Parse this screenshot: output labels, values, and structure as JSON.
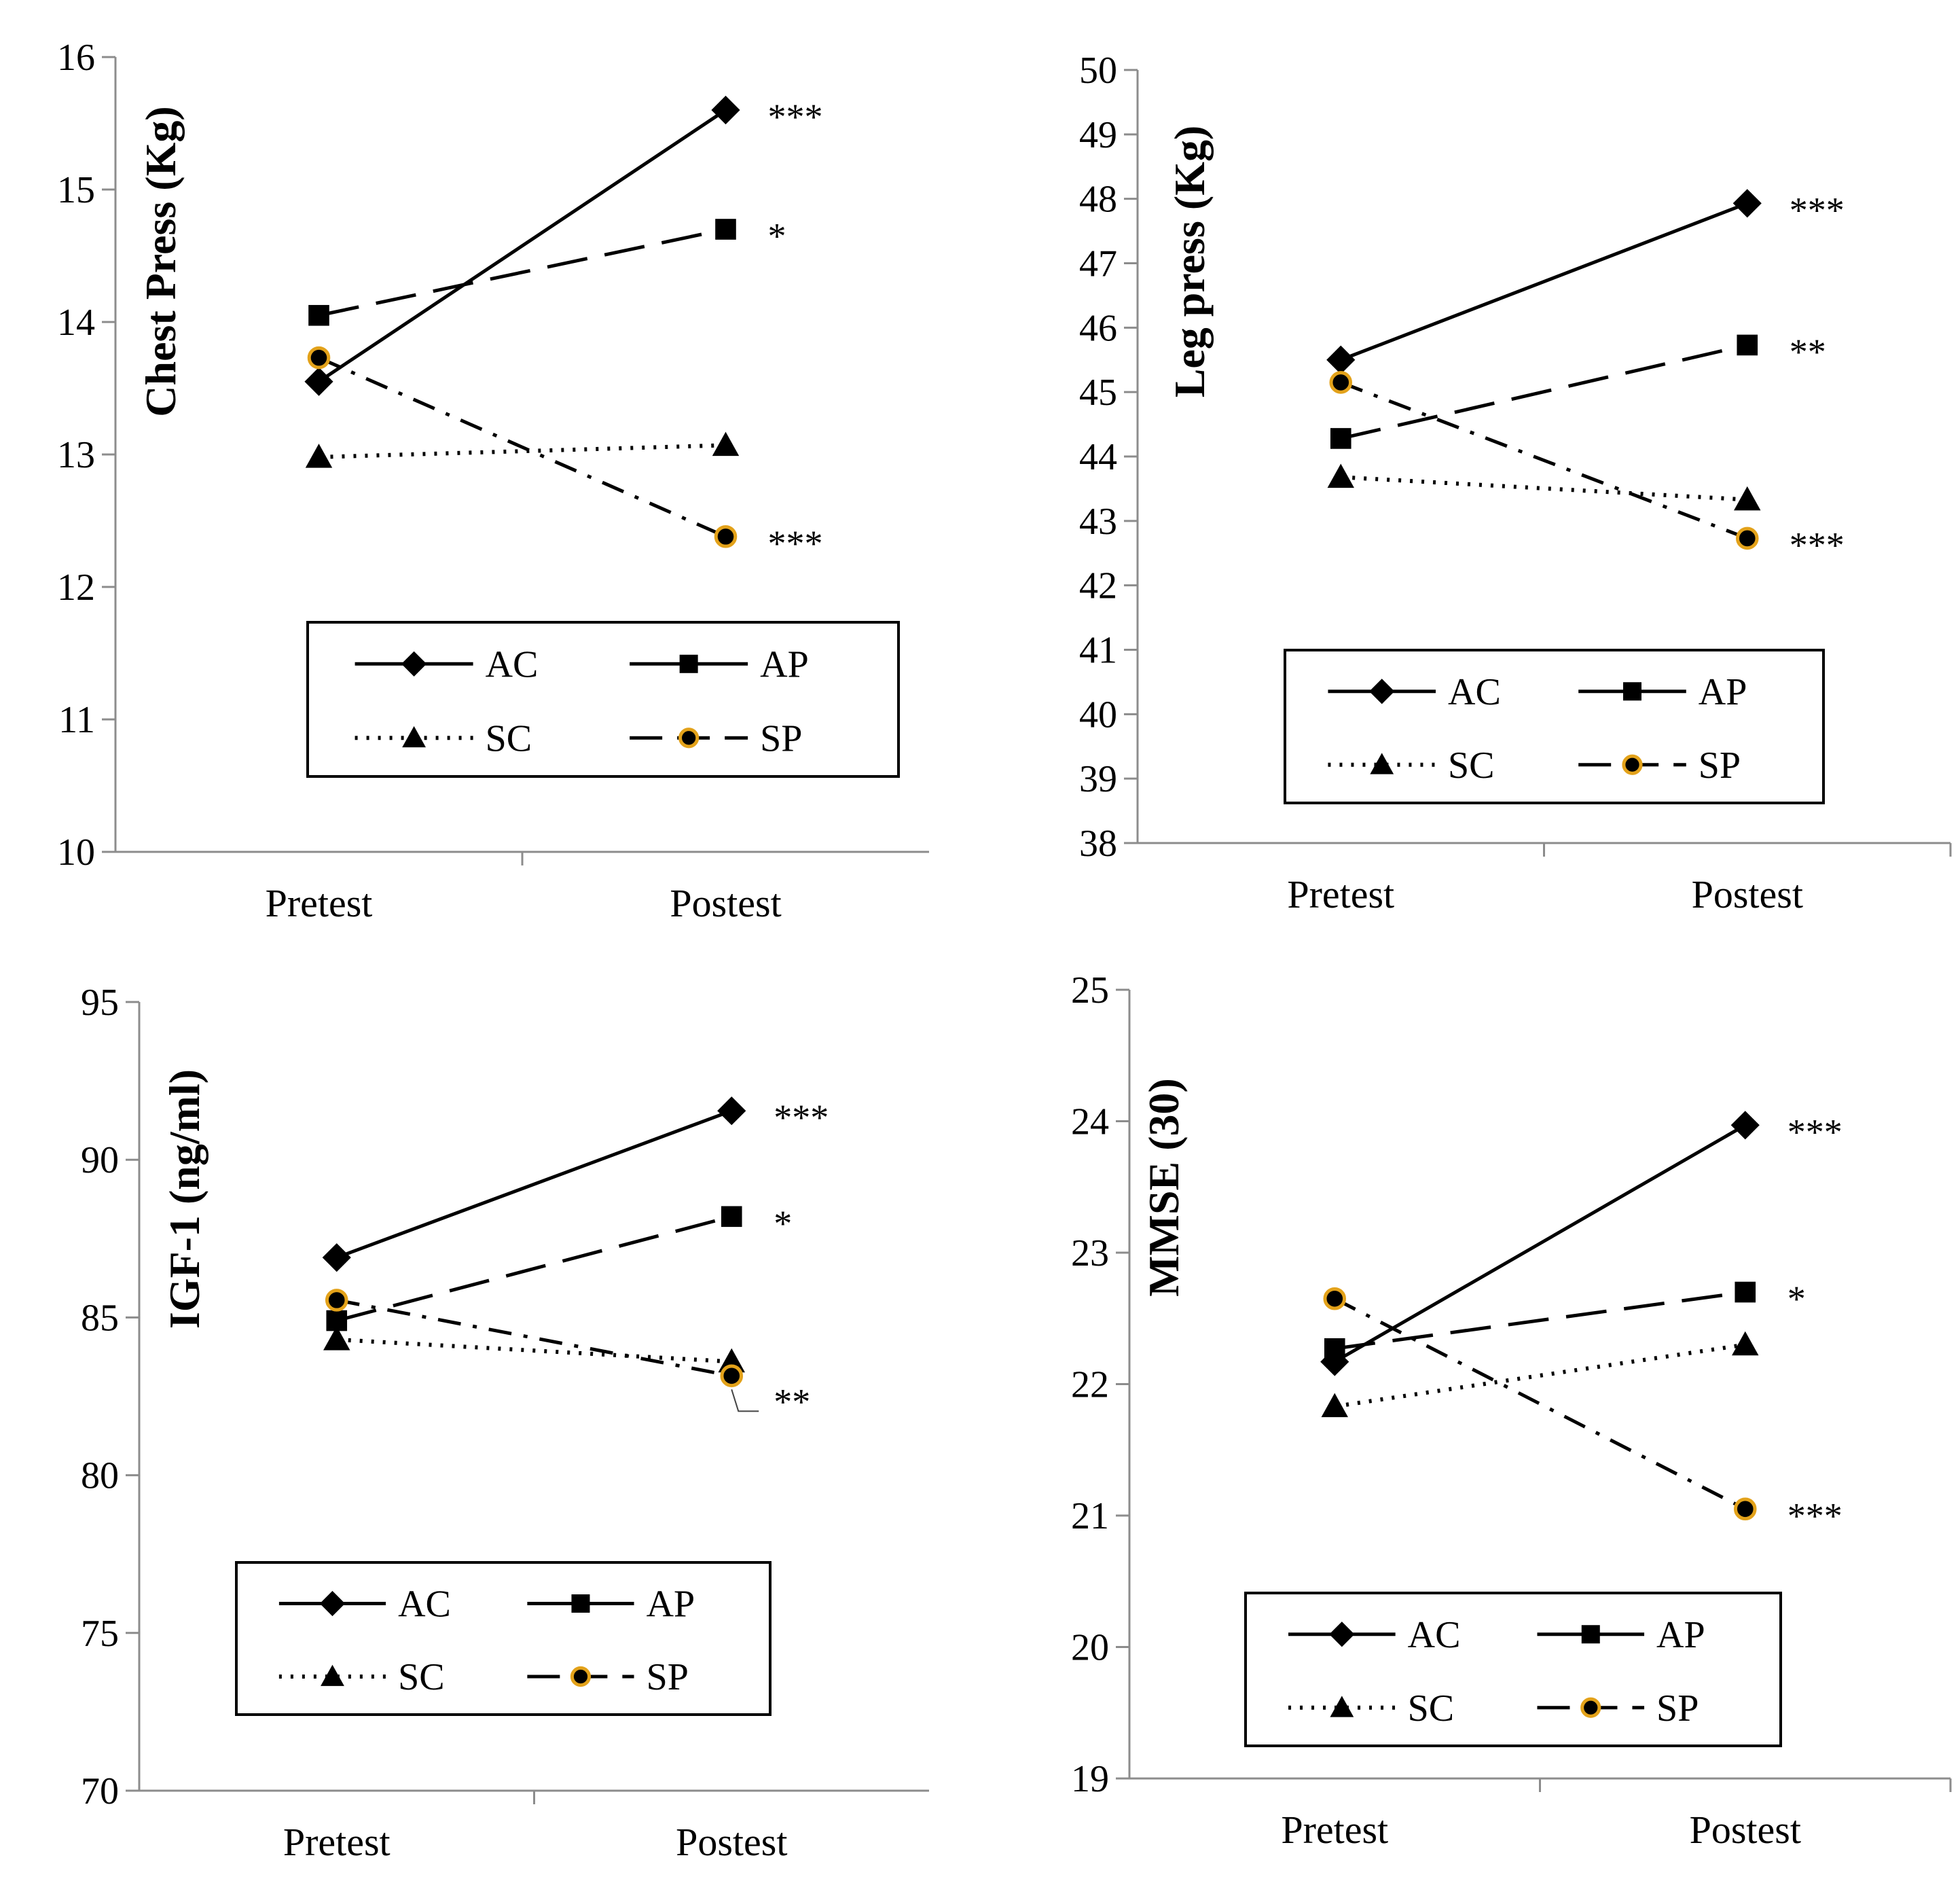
{
  "categories": [
    "Pretest",
    "Postest"
  ],
  "colors": {
    "line": "#000000",
    "sp_marker_fill": "#000000",
    "sp_marker_stroke": "#E3A21A",
    "background": "#ffffff"
  },
  "legend_items": [
    {
      "key": "AC",
      "label": "AC",
      "marker": "diamond",
      "dash": "solid"
    },
    {
      "key": "AP",
      "label": "AP",
      "marker": "square",
      "dash": "solid"
    },
    {
      "key": "SC",
      "label": "SC",
      "marker": "triangle",
      "dash": "dotted"
    },
    {
      "key": "SP",
      "label": "SP",
      "marker": "circle-orange",
      "dash": "dashed"
    }
  ],
  "chart_data": [
    {
      "type": "line",
      "ylabel": "Chest Press (Kg)",
      "ylim": [
        10,
        16
      ],
      "yticks": [
        10,
        11,
        12,
        13,
        14,
        15,
        16
      ],
      "categories": [
        "Pretest",
        "Postest"
      ],
      "series": [
        {
          "name": "AC",
          "values": [
            13.55,
            15.6
          ],
          "significance": "***"
        },
        {
          "name": "AP",
          "values": [
            14.05,
            14.7
          ],
          "significance": "*"
        },
        {
          "name": "SC",
          "values": [
            12.98,
            13.07
          ],
          "significance": ""
        },
        {
          "name": "SP",
          "values": [
            13.73,
            12.38
          ],
          "significance": "***"
        }
      ]
    },
    {
      "type": "line",
      "ylabel": "Leg press (Kg)",
      "ylim": [
        38,
        50
      ],
      "yticks": [
        38,
        39,
        40,
        41,
        42,
        43,
        44,
        45,
        46,
        47,
        48,
        49,
        50
      ],
      "categories": [
        "Pretest",
        "Postest"
      ],
      "series": [
        {
          "name": "AC",
          "values": [
            45.5,
            47.93
          ],
          "significance": "***"
        },
        {
          "name": "AP",
          "values": [
            44.28,
            45.73
          ],
          "significance": "**"
        },
        {
          "name": "SC",
          "values": [
            43.68,
            43.33
          ],
          "significance": ""
        },
        {
          "name": "SP",
          "values": [
            45.15,
            42.73
          ],
          "significance": "***"
        }
      ]
    },
    {
      "type": "line",
      "ylabel": "IGF-1 (ng/ml)",
      "ylim": [
        70,
        95
      ],
      "yticks": [
        70,
        75,
        80,
        85,
        90,
        95
      ],
      "categories": [
        "Pretest",
        "Postest"
      ],
      "series": [
        {
          "name": "AC",
          "values": [
            86.9,
            91.55
          ],
          "significance": "***"
        },
        {
          "name": "AP",
          "values": [
            84.9,
            88.2
          ],
          "significance": "*"
        },
        {
          "name": "SC",
          "values": [
            84.3,
            83.6
          ],
          "significance": ""
        },
        {
          "name": "SP",
          "values": [
            85.55,
            83.15
          ],
          "significance": "**"
        }
      ]
    },
    {
      "type": "line",
      "ylabel": "MMSE (30)",
      "ylim": [
        19,
        25
      ],
      "yticks": [
        19,
        20,
        21,
        22,
        23,
        24,
        25
      ],
      "categories": [
        "Pretest",
        "Postest"
      ],
      "series": [
        {
          "name": "AC",
          "values": [
            22.17,
            23.97
          ],
          "significance": "***"
        },
        {
          "name": "AP",
          "values": [
            22.27,
            22.7
          ],
          "significance": "*"
        },
        {
          "name": "SC",
          "values": [
            21.83,
            22.3
          ],
          "significance": ""
        },
        {
          "name": "SP",
          "values": [
            22.65,
            21.05
          ],
          "significance": "***"
        }
      ]
    }
  ]
}
